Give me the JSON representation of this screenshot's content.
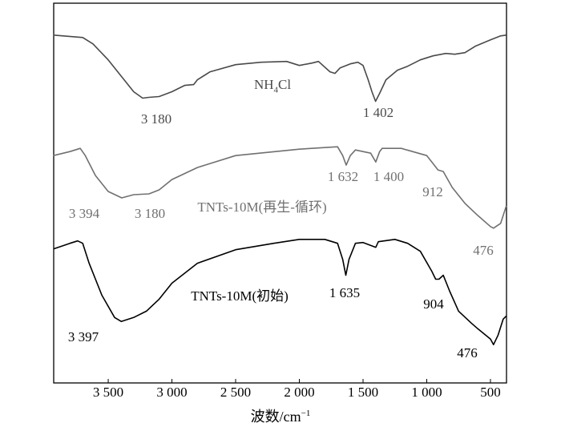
{
  "chart_data": {
    "type": "line",
    "title": "",
    "xlabel": "波数/cm",
    "xlabel_sup": "−1",
    "ylabel": "",
    "xlim": [
      3928,
      374
    ],
    "ylim": [
      0,
      476
    ],
    "x_reversed": true,
    "grid": false,
    "xticks": [
      {
        "value": 3500,
        "label": "3 500"
      },
      {
        "value": 3000,
        "label": "3 000"
      },
      {
        "value": 2500,
        "label": "2 500"
      },
      {
        "value": 2000,
        "label": "2 000"
      },
      {
        "value": 1500,
        "label": "1 500"
      },
      {
        "value": 1000,
        "label": "1 000"
      },
      {
        "value": 500,
        "label": "500"
      }
    ],
    "series": [
      {
        "name": "NH4Cl",
        "name_main": "NH",
        "name_sub": "4",
        "name_tail": "Cl",
        "color": "#4a4a4a",
        "x": [
          3930,
          3700,
          3620,
          3500,
          3400,
          3300,
          3230,
          3180,
          3100,
          3000,
          2900,
          2830,
          2800,
          2700,
          2500,
          2300,
          2100,
          2000,
          1900,
          1850,
          1760,
          1720,
          1680,
          1600,
          1540,
          1500,
          1460,
          1430,
          1402,
          1370,
          1320,
          1230,
          1150,
          1050,
          950,
          850,
          780,
          700,
          620,
          500,
          420,
          375
        ],
        "y": [
          436,
          433,
          425,
          405,
          385,
          365,
          357,
          358,
          359,
          365,
          373,
          374,
          380,
          390,
          399,
          402,
          403,
          398,
          401,
          403,
          390,
          388,
          395,
          400,
          402,
          398,
          380,
          365,
          353,
          363,
          380,
          392,
          397,
          405,
          410,
          413,
          412,
          414,
          422,
          430,
          435,
          436
        ],
        "annotations": [
          {
            "x": 3180,
            "label": "3 180"
          },
          {
            "x": 1402,
            "label": "1 402"
          }
        ]
      },
      {
        "name": "TNTs-10M(再生-循环)",
        "color": "#707070",
        "x": [
          3930,
          3800,
          3720,
          3680,
          3600,
          3500,
          3394,
          3300,
          3180,
          3100,
          3000,
          2800,
          2500,
          2000,
          1700,
          1660,
          1632,
          1600,
          1560,
          1500,
          1440,
          1400,
          1370,
          1350,
          1200,
          1000,
          950,
          912,
          870,
          800,
          700,
          600,
          500,
          476,
          420,
          375
        ],
        "y": [
          285,
          290,
          294,
          285,
          260,
          240,
          232,
          236,
          237,
          242,
          255,
          270,
          285,
          293,
          296,
          285,
          273,
          285,
          292,
          290,
          288,
          277,
          290,
          294,
          294,
          285,
          275,
          267,
          265,
          245,
          225,
          210,
          196,
          194,
          200,
          222
        ],
        "annotations": [
          {
            "x": 3394,
            "label": "3 394"
          },
          {
            "x": 3180,
            "label": "3 180"
          },
          {
            "x": 1632,
            "label": "1 632"
          },
          {
            "x": 1400,
            "label": "1 400"
          },
          {
            "x": 912,
            "label": "912"
          },
          {
            "x": 476,
            "label": "476"
          }
        ]
      },
      {
        "name": "TNTs-10M(初始)",
        "color": "#000000",
        "x": [
          3930,
          3800,
          3740,
          3700,
          3650,
          3550,
          3450,
          3397,
          3300,
          3200,
          3100,
          3000,
          2800,
          2500,
          2200,
          2000,
          1800,
          1700,
          1660,
          1635,
          1610,
          1560,
          1500,
          1400,
          1380,
          1250,
          1150,
          1050,
          960,
          930,
          904,
          870,
          820,
          750,
          650,
          600,
          500,
          476,
          440,
          400,
          375
        ],
        "y": [
          168,
          175,
          178,
          175,
          150,
          110,
          82,
          77,
          82,
          90,
          105,
          125,
          150,
          167,
          175,
          180,
          180,
          175,
          155,
          135,
          155,
          175,
          176,
          170,
          177,
          180,
          175,
          165,
          140,
          130,
          130,
          135,
          115,
          90,
          75,
          68,
          55,
          48,
          60,
          80,
          84
        ],
        "annotations": [
          {
            "x": 3397,
            "label": "3 397"
          },
          {
            "x": 1635,
            "label": "1 635"
          },
          {
            "x": 904,
            "label": "904"
          },
          {
            "x": 476,
            "label": "476"
          }
        ]
      }
    ]
  }
}
